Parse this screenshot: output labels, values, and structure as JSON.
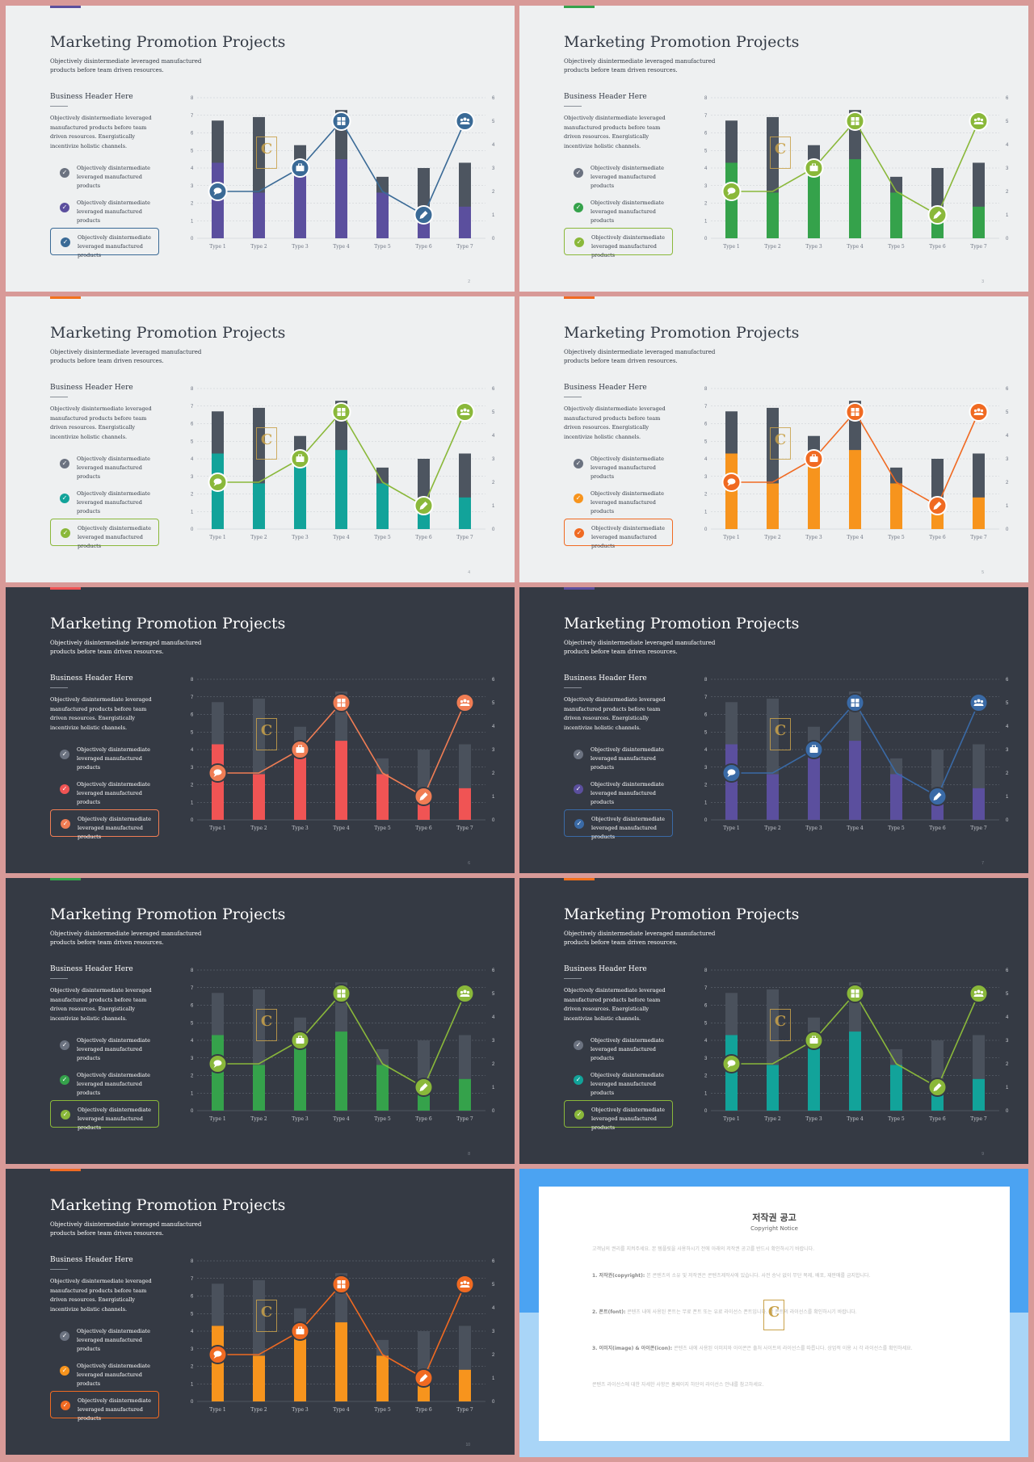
{
  "chart_data": {
    "type": "bar",
    "categories": [
      "Type 1",
      "Type 2",
      "Type 3",
      "Type 4",
      "Type 5",
      "Type 6",
      "Type 7"
    ],
    "left_axis": {
      "ticks": [
        "0",
        "1",
        "2",
        "3",
        "4",
        "5",
        "6",
        "7",
        "8"
      ],
      "ylim": [
        0,
        8
      ]
    },
    "right_axis": {
      "ticks": [
        "0",
        "1",
        "2",
        "3",
        "4",
        "5",
        "6"
      ],
      "ylim": [
        0,
        6
      ]
    },
    "series": [
      {
        "kind": "stacked-bar-total",
        "values": [
          6.7,
          6.9,
          5.3,
          7.3,
          3.5,
          4.0,
          4.3
        ]
      },
      {
        "kind": "stacked-bar-highlight",
        "values": [
          4.3,
          2.6,
          4.0,
          4.5,
          2.6,
          1.3,
          1.8
        ]
      },
      {
        "kind": "line-right-axis",
        "values": [
          2.0,
          2.0,
          3.0,
          5.0,
          2.0,
          1.0,
          5.0
        ]
      }
    ],
    "markers": [
      {
        "category_index": 0,
        "icon": "chat-icon"
      },
      {
        "category_index": 2,
        "icon": "briefcase-icon"
      },
      {
        "category_index": 3,
        "icon": "grid-icon"
      },
      {
        "category_index": 5,
        "icon": "pencil-icon"
      },
      {
        "category_index": 6,
        "icon": "group-icon"
      }
    ],
    "grid": true
  },
  "common": {
    "title": "Marketing Promotion Projects",
    "subtitle": "Objectively disintermediate leveraged manufactured products before team driven resources.",
    "business_header": "Business Header Here",
    "body": "Objectively disintermediate leveraged manufactured products before team driven resources. Energistically incentivize holistic channels.",
    "check_items": [
      "Objectively disintermediate leveraged manufactured products",
      "Objectively disintermediate leveraged manufactured products",
      "Objectively disintermediate leveraged manufactured products"
    ]
  },
  "slides": [
    {
      "theme": "light",
      "page": "2",
      "bar": "#5b4f9e",
      "line": "#3a6a96",
      "marker": "#3a6a96",
      "box": "#3a6a96",
      "accent": "#5b4f9e"
    },
    {
      "theme": "light",
      "page": "3",
      "bar": "#35a24b",
      "line": "#8ab83a",
      "marker": "#8ab83a",
      "box": "#8ab83a",
      "accent": "#35a24b"
    },
    {
      "theme": "light",
      "page": "4",
      "bar": "#12a39a",
      "line": "#8ab83a",
      "marker": "#8ab83a",
      "box": "#8ab83a",
      "accent": "#f2711c"
    },
    {
      "theme": "light",
      "page": "5",
      "bar": "#f7941d",
      "line": "#f06a22",
      "marker": "#f06a22",
      "box": "#f06a22",
      "accent": "#f06a22"
    },
    {
      "theme": "dark",
      "page": "6",
      "bar": "#f05454",
      "line": "#f07d54",
      "marker": "#f07d54",
      "box": "#f07d54",
      "accent": "#f05454"
    },
    {
      "theme": "dark",
      "page": "7",
      "bar": "#5b4f9e",
      "line": "#3a6aa6",
      "marker": "#3a6aa6",
      "box": "#3a6aa6",
      "accent": "#5b4f9e"
    },
    {
      "theme": "dark",
      "page": "8",
      "bar": "#35a24b",
      "line": "#8ab83a",
      "marker": "#8ab83a",
      "box": "#8ab83a",
      "accent": "#35a24b"
    },
    {
      "theme": "dark",
      "page": "9",
      "bar": "#12a39a",
      "line": "#8ab83a",
      "marker": "#8ab83a",
      "box": "#8ab83a",
      "accent": "#f2711c"
    },
    {
      "theme": "dark",
      "page": "10",
      "bar": "#f7941d",
      "line": "#f06a22",
      "marker": "#f06a22",
      "box": "#f06a22",
      "accent": "#f06a22"
    }
  ],
  "colors": {
    "light_bar_bg": "#4d5560",
    "dark_bar_bg": "#4a515c",
    "light_text": "#333a45",
    "dark_text": "#ffffff",
    "check_grey": "#6b7280"
  },
  "copyright": {
    "title": "저작권 공고",
    "subtitle": "Copyright Notice",
    "p1": "고객님의 권리를 지켜주세요. 본 템플릿을 사용하시기 전에 아래의 저작권 공고를 반드시 확인하시기 바랍니다.",
    "p2_head": "1. 저작권(copyright):",
    "p2": "본 콘텐츠의 소유 및 저작권은 콘텐츠제작사에 있습니다. 사전 승낙 없이 무단 복제, 배포, 재판매를 금지합니다.",
    "p3_head": "2. 폰트(font):",
    "p3": "콘텐츠 내에 사용된 폰트는 무료 폰트 또는 유료 라이선스 폰트입니다. 각 폰트의 라이선스를 확인하시기 바랍니다.",
    "p4_head": "3. 이미지(image) & 아이콘(icon):",
    "p4": "콘텐츠 내에 사용된 이미지와 아이콘은 출처 사이트의 라이선스를 따릅니다. 상업적 이용 시 각 라이선스를 확인하세요.",
    "p5": "콘텐츠 라이선스에 대한 자세한 사항은 홈페이지 하단의 라이선스 안내를 참고하세요.",
    "watermark_letter": "C"
  }
}
